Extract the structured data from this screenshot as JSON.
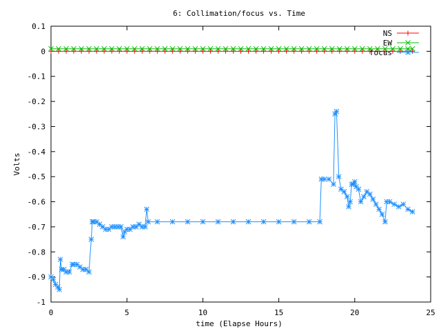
{
  "chart_data": {
    "type": "line",
    "title": "6: Collimation/focus vs. Time",
    "xlabel": "time (Elapse Hours)",
    "ylabel": "Volts",
    "xlim": [
      0,
      25
    ],
    "ylim": [
      -1,
      0.1
    ],
    "xticks": [
      0,
      5,
      10,
      15,
      20,
      25
    ],
    "xtick_labels": [
      "0",
      "5",
      "10",
      "15",
      "20",
      "25"
    ],
    "yticks": [
      0.1,
      0,
      -0.1,
      -0.2,
      -0.3,
      -0.4,
      -0.5,
      -0.6,
      -0.7,
      -0.8,
      -0.9,
      -1
    ],
    "ytick_labels": [
      "0.1",
      "0",
      "-0.1",
      "-0.2",
      "-0.3",
      "-0.4",
      "-0.5",
      "-0.6",
      "-0.7",
      "-0.8",
      "-0.9",
      "-1"
    ],
    "grid": false,
    "legend_position": "top-right",
    "series": [
      {
        "name": "NS",
        "color": "#ff0000",
        "marker": "plus",
        "x": [
          0,
          0.5,
          1,
          1.5,
          2,
          2.5,
          3,
          3.5,
          4,
          4.5,
          5,
          5.5,
          6,
          6.5,
          7,
          7.5,
          8,
          8.5,
          9,
          9.5,
          10,
          10.5,
          11,
          11.5,
          12,
          12.5,
          13,
          13.5,
          14,
          14.5,
          15,
          15.5,
          16,
          16.5,
          17,
          17.5,
          18,
          18.5,
          19,
          19.5,
          20,
          20.5,
          21,
          21.5,
          22,
          22.5,
          23,
          23.5,
          23.8
        ],
        "y": [
          0,
          0,
          0,
          0,
          0,
          0,
          0,
          0,
          0,
          0,
          0,
          0,
          0,
          0,
          0,
          0,
          0,
          0,
          0,
          0,
          0,
          0,
          0,
          0,
          0,
          0,
          0,
          0,
          0,
          0,
          0,
          0,
          0,
          0,
          0,
          0,
          0,
          0,
          0,
          0,
          0,
          0,
          0,
          0,
          0,
          0,
          0,
          0,
          0
        ]
      },
      {
        "name": "EW",
        "color": "#00c000",
        "marker": "x",
        "x": [
          0,
          0.5,
          1,
          1.5,
          2,
          2.5,
          3,
          3.5,
          4,
          4.5,
          5,
          5.5,
          6,
          6.5,
          7,
          7.5,
          8,
          8.5,
          9,
          9.5,
          10,
          10.5,
          11,
          11.5,
          12,
          12.5,
          13,
          13.5,
          14,
          14.5,
          15,
          15.5,
          16,
          16.5,
          17,
          17.5,
          18,
          18.5,
          19,
          19.5,
          20,
          20.5,
          21,
          21.5,
          22,
          22.5,
          23,
          23.5,
          23.8
        ],
        "y": [
          0.01,
          0.01,
          0.01,
          0.01,
          0.01,
          0.01,
          0.01,
          0.01,
          0.01,
          0.01,
          0.01,
          0.01,
          0.01,
          0.01,
          0.01,
          0.01,
          0.01,
          0.01,
          0.01,
          0.01,
          0.01,
          0.01,
          0.01,
          0.01,
          0.01,
          0.01,
          0.01,
          0.01,
          0.01,
          0.01,
          0.01,
          0.01,
          0.01,
          0.01,
          0.01,
          0.01,
          0.01,
          0.01,
          0.01,
          0.01,
          0.01,
          0.01,
          0.01,
          0.01,
          0.01,
          0.01,
          0.01,
          0.01,
          0.01
        ]
      },
      {
        "name": "focus",
        "color": "#1e90ff",
        "marker": "star",
        "x": [
          0,
          0.15,
          0.3,
          0.45,
          0.55,
          0.62,
          0.7,
          0.85,
          1.0,
          1.2,
          1.4,
          1.5,
          1.7,
          1.9,
          2.1,
          2.3,
          2.5,
          2.65,
          2.72,
          2.8,
          3.0,
          3.2,
          3.4,
          3.6,
          3.8,
          4.0,
          4.2,
          4.4,
          4.6,
          4.75,
          4.85,
          5.0,
          5.2,
          5.4,
          5.6,
          5.8,
          6.0,
          6.2,
          6.3,
          6.4,
          7,
          8,
          9,
          10,
          11,
          12,
          13,
          14,
          15,
          16,
          17,
          17.7,
          17.8,
          18.0,
          18.3,
          18.6,
          18.7,
          18.8,
          18.95,
          19.1,
          19.3,
          19.5,
          19.6,
          19.7,
          19.8,
          19.9,
          20.0,
          20.1,
          20.25,
          20.4,
          20.6,
          20.8,
          21.0,
          21.2,
          21.4,
          21.6,
          21.8,
          22.0,
          22.1,
          22.3,
          22.6,
          22.9,
          23.2,
          23.5,
          23.8
        ],
        "y": [
          -0.9,
          -0.91,
          -0.93,
          -0.94,
          -0.95,
          -0.83,
          -0.87,
          -0.87,
          -0.88,
          -0.88,
          -0.85,
          -0.85,
          -0.85,
          -0.86,
          -0.87,
          -0.87,
          -0.88,
          -0.75,
          -0.68,
          -0.68,
          -0.68,
          -0.69,
          -0.7,
          -0.71,
          -0.71,
          -0.7,
          -0.7,
          -0.7,
          -0.7,
          -0.74,
          -0.72,
          -0.71,
          -0.71,
          -0.7,
          -0.7,
          -0.69,
          -0.7,
          -0.7,
          -0.63,
          -0.68,
          -0.68,
          -0.68,
          -0.68,
          -0.68,
          -0.68,
          -0.68,
          -0.68,
          -0.68,
          -0.68,
          -0.68,
          -0.68,
          -0.68,
          -0.51,
          -0.51,
          -0.51,
          -0.53,
          -0.25,
          -0.24,
          -0.5,
          -0.55,
          -0.56,
          -0.58,
          -0.62,
          -0.6,
          -0.53,
          -0.53,
          -0.52,
          -0.54,
          -0.55,
          -0.6,
          -0.58,
          -0.56,
          -0.57,
          -0.59,
          -0.61,
          -0.63,
          -0.65,
          -0.68,
          -0.6,
          -0.6,
          -0.61,
          -0.62,
          -0.61,
          -0.63,
          -0.64
        ]
      }
    ]
  }
}
